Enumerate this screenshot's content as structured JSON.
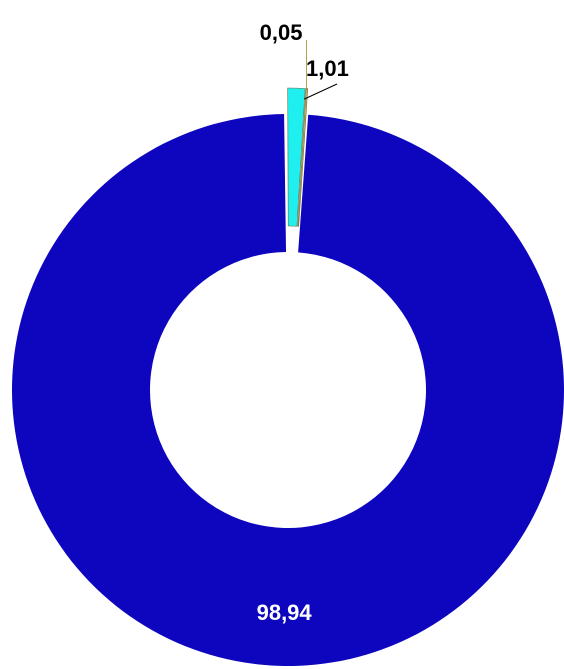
{
  "chart_data": {
    "type": "pie",
    "variant": "donut",
    "title": "",
    "slices": [
      {
        "label": "98,94",
        "value": 98.94,
        "color": "#0e06bf",
        "exploded": false,
        "label_color": "#ffffff"
      },
      {
        "label": "1,01",
        "value": 1.01,
        "color": "#1ff0ef",
        "exploded": true,
        "label_color": "#000000"
      },
      {
        "label": "0,05",
        "value": 0.05,
        "color": "#c8b06a",
        "exploded": true,
        "label_color": "#000000"
      }
    ],
    "legend": "none"
  }
}
